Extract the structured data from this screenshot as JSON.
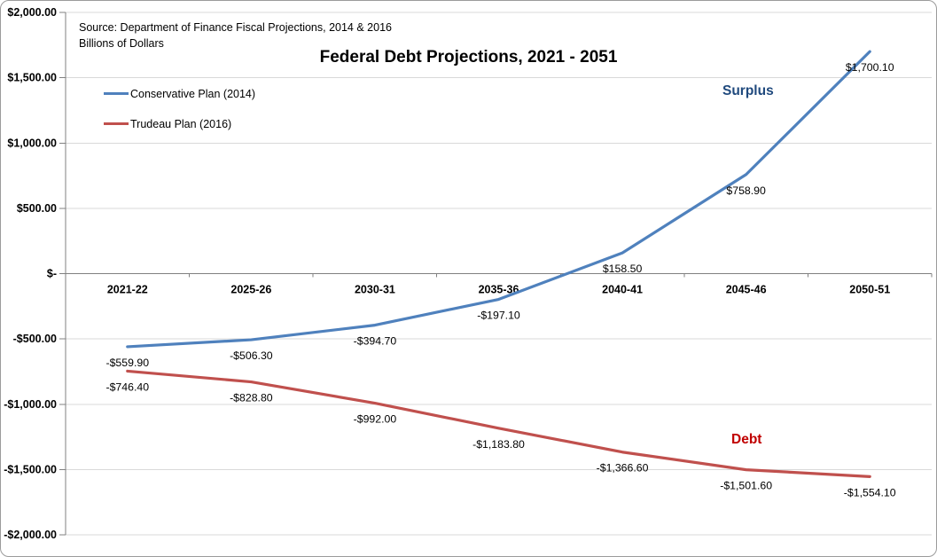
{
  "chart_data": {
    "type": "line",
    "title": "Federal Debt Projections, 2021 - 2051",
    "source_note": {
      "line1": "Source: Department of Finance Fiscal Projections, 2014 & 2016",
      "line2": "Billions of Dollars"
    },
    "categories": [
      "2021-22",
      "2025-26",
      "2030-31",
      "2035-36",
      "2040-41",
      "2045-46",
      "2050-51"
    ],
    "series": [
      {
        "name": "Conservative Plan (2014)",
        "color": "#4F81BD",
        "values": [
          -559.9,
          -506.3,
          -394.7,
          -197.1,
          158.5,
          758.9,
          1700.1
        ],
        "point_labels": [
          "-$559.90",
          "-$506.30",
          "-$394.70",
          "-$197.10",
          "$158.50",
          "$758.90",
          "$1,700.10"
        ]
      },
      {
        "name": "Trudeau Plan (2016)",
        "color": "#C0504D",
        "values": [
          -746.4,
          -828.8,
          -992.0,
          -1183.8,
          -1366.6,
          -1501.6,
          -1554.1
        ],
        "point_labels": [
          "-$746.40",
          "-$828.80",
          "-$992.00",
          "-$1,183.80",
          "-$1,366.60",
          "-$1,501.60",
          "-$1,554.10"
        ]
      }
    ],
    "y_axis": {
      "min": -2000,
      "max": 2000,
      "step": 500,
      "ticks": [
        {
          "value": 2000,
          "label": "$2,000.00"
        },
        {
          "value": 1500,
          "label": "$1,500.00"
        },
        {
          "value": 1000,
          "label": "$1,000.00"
        },
        {
          "value": 500,
          "label": "$500.00"
        },
        {
          "value": 0,
          "label": "$-"
        },
        {
          "value": -500,
          "label": "-$500.00"
        },
        {
          "value": -1000,
          "label": "-$1,000.00"
        },
        {
          "value": -1500,
          "label": "-$1,500.00"
        },
        {
          "value": -2000,
          "label": "-$2,000.00"
        }
      ]
    },
    "annotations": [
      {
        "text": "Surplus",
        "color": "#1F497D"
      },
      {
        "text": "Debt",
        "color": "#C00000"
      }
    ],
    "legend_position": "inside-top-left",
    "grid": true,
    "colors": {
      "gridline": "#D9D9D9",
      "axis": "#808080",
      "label_text": "#000000"
    }
  }
}
